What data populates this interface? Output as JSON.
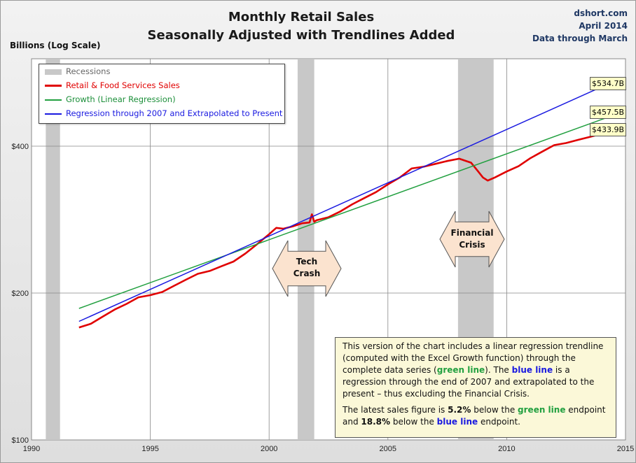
{
  "header": {
    "title_line1": "Monthly Retail Sales",
    "title_line2": "Seasonally Adjusted with Trendlines Added",
    "source": "dshort.com",
    "date": "April 2014",
    "data_through": "Data through March"
  },
  "colors": {
    "retail": "#e00000",
    "growth": "#22a040",
    "regression": "#1a1ae0",
    "recession": "#c8c8c8"
  },
  "chart_data": {
    "type": "line",
    "ylabel": "Billions (Log Scale)",
    "yscale": "log",
    "xlim": [
      1990,
      2015
    ],
    "ylim": [
      100,
      600
    ],
    "x_ticks": [
      1990,
      1995,
      2000,
      2005,
      2010,
      2015
    ],
    "y_ticks": [
      {
        "value": 100,
        "label": "$100"
      },
      {
        "value": 200,
        "label": "$200"
      },
      {
        "value": 400,
        "label": "$400"
      }
    ],
    "legend_position": "top-left",
    "grid": true,
    "recessions": [
      [
        1990.6,
        1991.2
      ],
      [
        2001.2,
        2001.9
      ],
      [
        2007.95,
        2009.45
      ]
    ],
    "legend": [
      {
        "label": "Recessions",
        "type": "recession"
      },
      {
        "label": "Retail & Food Services Sales",
        "type": "retail"
      },
      {
        "label": "Growth (Linear Regression)",
        "type": "growth"
      },
      {
        "label": "Regression through 2007 and Extrapolated to Present",
        "type": "regression"
      }
    ],
    "series": [
      {
        "name": "Retail & Food Services Sales",
        "color": "#e00000",
        "x": [
          1992.0,
          1992.5,
          1993.0,
          1993.5,
          1994.0,
          1994.5,
          1995.0,
          1995.5,
          1996.0,
          1996.5,
          1997.0,
          1997.5,
          1998.0,
          1998.5,
          1999.0,
          1999.5,
          2000.0,
          2000.3,
          2000.6,
          2001.0,
          2001.4,
          2001.7,
          2001.8,
          2001.9,
          2002.0,
          2002.5,
          2003.0,
          2003.5,
          2004.0,
          2004.5,
          2005.0,
          2005.5,
          2006.0,
          2006.5,
          2007.0,
          2007.5,
          2008.0,
          2008.5,
          2008.8,
          2009.0,
          2009.2,
          2009.5,
          2010.0,
          2010.5,
          2011.0,
          2011.5,
          2012.0,
          2012.5,
          2013.0,
          2013.5,
          2014.0,
          2014.2
        ],
        "values": [
          170,
          173,
          179,
          185,
          190,
          196,
          198,
          201,
          207,
          213,
          219,
          222,
          227,
          232,
          241,
          252,
          264,
          272,
          271,
          274,
          278,
          279,
          290,
          280,
          282,
          286,
          294,
          304,
          313,
          322,
          334,
          345,
          360,
          363,
          368,
          373,
          377,
          370,
          355,
          345,
          340,
          345,
          355,
          364,
          378,
          390,
          402,
          406,
          412,
          418,
          424,
          433.9
        ]
      },
      {
        "name": "Growth (Linear Regression)",
        "color": "#22a040",
        "x": [
          1992.0,
          2014.2
        ],
        "values": [
          186,
          457.5
        ]
      },
      {
        "name": "Regression through 2007 and Extrapolated to Present",
        "color": "#1a1ae0",
        "x": [
          1992.0,
          2014.2
        ],
        "values": [
          175,
          534.7
        ]
      }
    ],
    "end_labels": [
      "$534.7B",
      "$457.5B",
      "$433.9B"
    ],
    "annotations": [
      {
        "label_line1": "Tech",
        "label_line2": "Crash"
      },
      {
        "label_line1": "Financial",
        "label_line2": "Crisis"
      }
    ]
  },
  "note": {
    "p1_a": "This version of the chart includes a linear regression trendline (computed with the Excel Growth function) through the complete data series (",
    "p1_green": "green line",
    "p1_b": "). The ",
    "p1_blue": "blue line",
    "p1_c": " is a regression through the end of 2007 and extrapolated to the present – thus excluding the Financial Crisis.",
    "p2_a": "The latest sales figure is ",
    "p2_pct1": "5.2%",
    "p2_b": " below the ",
    "p2_green": "green line",
    "p2_c": " endpoint and ",
    "p2_pct2": "18.8%",
    "p2_d": " below the ",
    "p2_blue": "blue line",
    "p2_e": " endpoint."
  }
}
